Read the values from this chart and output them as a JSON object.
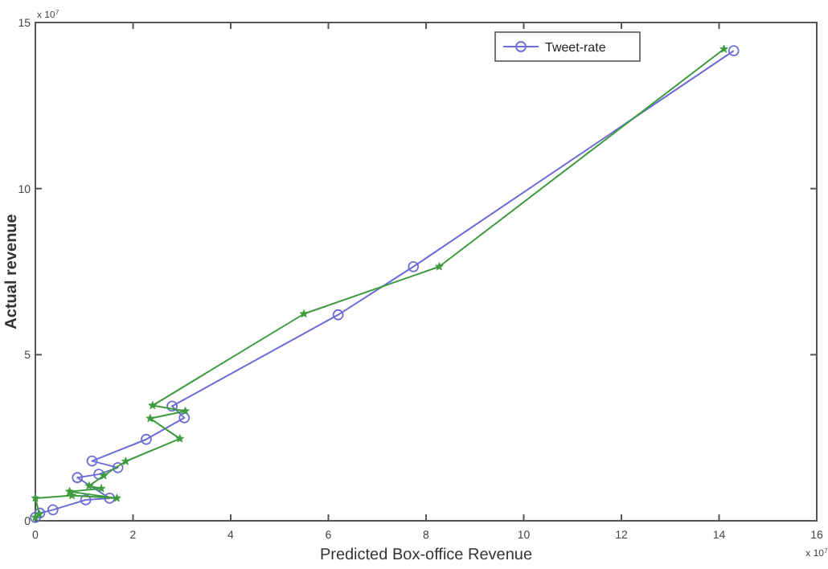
{
  "chart_data": {
    "type": "line",
    "xlabel": "Predicted Box-office Revenue",
    "ylabel": "Actual revenue",
    "annotations": [
      "x 10$^{7}$",
      "x 10$^{7}$"
    ],
    "xlim": [
      0,
      16
    ],
    "ylim": [
      0,
      15
    ],
    "xticks": [
      0,
      2,
      4,
      6,
      8,
      10,
      12,
      14,
      16
    ],
    "yticks": [
      0,
      5,
      10,
      15
    ],
    "grid": false,
    "legend": "top right",
    "series": [
      {
        "name": "Tweet-rate",
        "color": "#6b6bd6",
        "marker": "circle",
        "x": [
          0,
          0.09,
          0.36,
          1.03,
          1.52,
          0.86,
          1.3,
          1.69,
          1.16,
          2.27,
          3.05,
          2.8,
          6.2,
          7.74,
          14.3
        ],
        "values": [
          0.1,
          0.23,
          0.33,
          0.63,
          0.68,
          1.3,
          1.4,
          1.6,
          1.8,
          2.45,
          3.1,
          3.45,
          6.2,
          7.65,
          14.15
        ]
      },
      {
        "color": "#3d9a3d",
        "marker": "star",
        "x": [
          0,
          0.08,
          0,
          0.75,
          1.67,
          0.7,
          1.35,
          1.1,
          1.4,
          1.85,
          2.96,
          2.35,
          3.07,
          2.4,
          5.5,
          8.27,
          14.1
        ],
        "values": [
          0.1,
          0.2,
          0.68,
          0.76,
          0.68,
          0.88,
          0.97,
          1.05,
          1.36,
          1.79,
          2.47,
          3.08,
          3.3,
          3.47,
          6.23,
          7.65,
          14.2
        ]
      }
    ]
  }
}
